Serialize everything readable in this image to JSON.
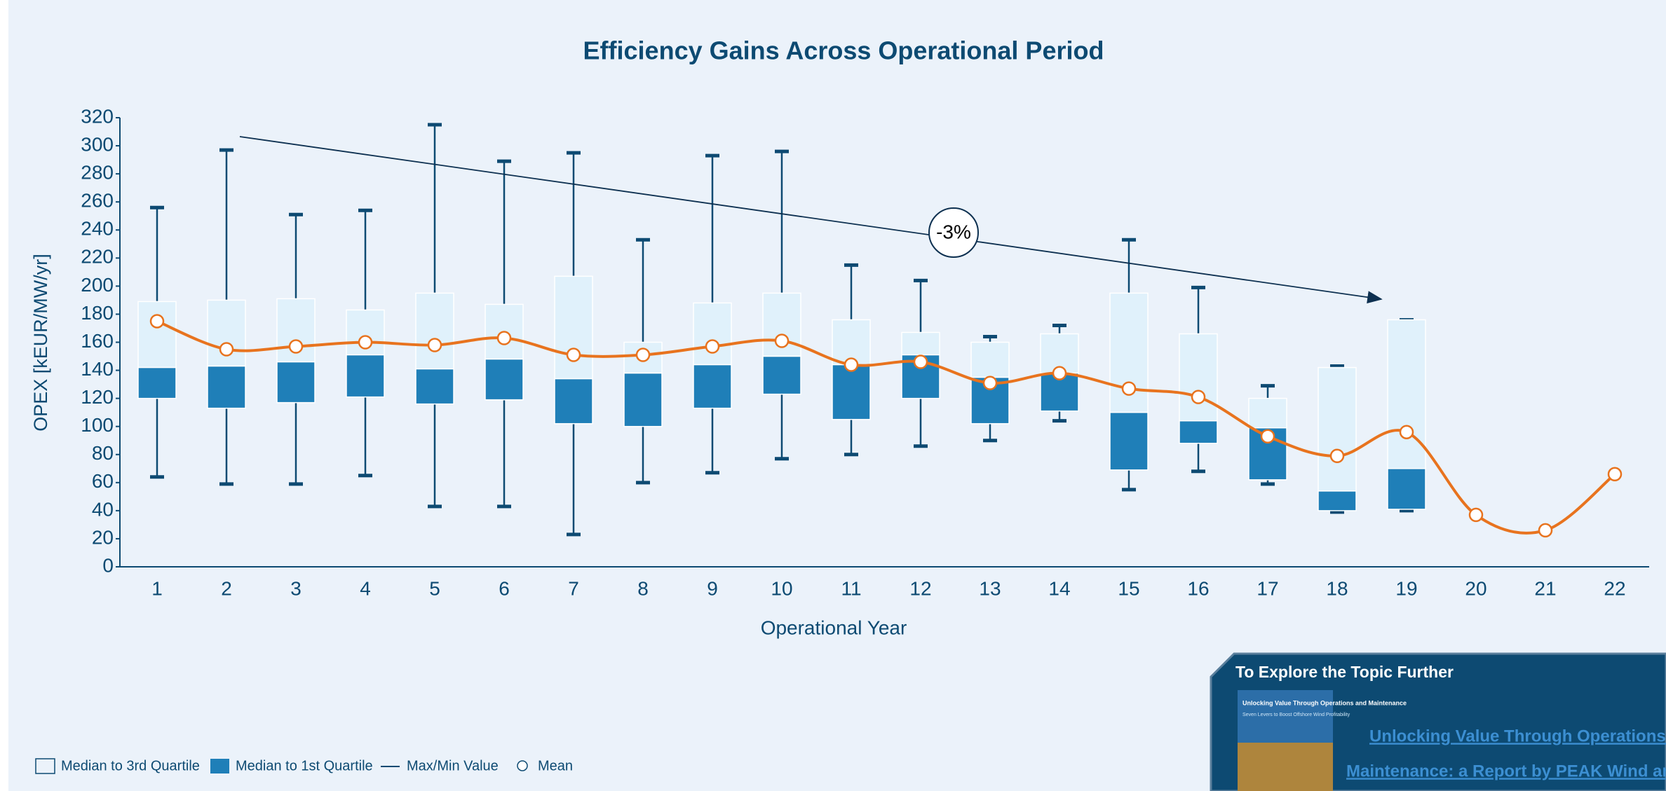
{
  "chart_data": {
    "type": "box",
    "title": "Efficiency Gains Across Operational Period",
    "x_label": "Operational Year",
    "y_label": "OPEX [kEUR/MW/yr]",
    "categories": [
      "1",
      "2",
      "3",
      "4",
      "5",
      "6",
      "7",
      "8",
      "9",
      "10",
      "11",
      "12",
      "13",
      "14",
      "15",
      "16",
      "17",
      "18",
      "19",
      "20",
      "21",
      "22"
    ],
    "max": [
      256,
      297,
      251,
      254,
      315,
      289,
      295,
      233,
      293,
      296,
      215,
      204,
      164,
      172,
      233,
      199,
      129,
      143,
      176,
      null,
      null,
      null
    ],
    "q3": [
      189,
      190,
      191,
      183,
      195,
      187,
      207,
      160,
      188,
      195,
      176,
      167,
      160,
      166,
      195,
      166,
      120,
      142,
      176,
      null,
      null,
      null
    ],
    "median": [
      142,
      143,
      146,
      151,
      141,
      148,
      134,
      138,
      144,
      150,
      144,
      151,
      135,
      138,
      110,
      104,
      99,
      54,
      70,
      null,
      null,
      null
    ],
    "q1": [
      120,
      113,
      117,
      121,
      116,
      119,
      102,
      100,
      113,
      123,
      105,
      120,
      102,
      111,
      69,
      88,
      62,
      40,
      41,
      null,
      null,
      null
    ],
    "min": [
      64,
      59,
      59,
      65,
      43,
      43,
      23,
      60,
      67,
      77,
      80,
      86,
      90,
      104,
      55,
      68,
      59,
      39,
      40,
      null,
      null,
      null
    ],
    "mean": [
      175,
      155,
      157,
      160,
      158,
      163,
      151,
      151,
      157,
      161,
      144,
      146,
      131,
      138,
      127,
      121,
      93,
      79,
      96,
      37,
      26,
      66
    ],
    "colors": {
      "upper_box": "#e0f1fb",
      "lower_box": "#1f7fb8",
      "whisker": "#0d4a72",
      "mean": "#e8731e"
    },
    "legend": [
      "Median to 3rd Quartile",
      "Median to 1st Quartile",
      "Max/Min Value",
      "Mean"
    ],
    "annotation": "-3%",
    "ylim": [
      0,
      320
    ],
    "yticks": [
      0,
      20,
      40,
      60,
      80,
      100,
      120,
      140,
      160,
      180,
      200,
      220,
      240,
      260,
      280,
      300,
      320
    ]
  },
  "panel": {
    "title": "To Explore the Topic Further",
    "cover_title": "Unlocking Value Through Operations and Maintenance",
    "cover_subtitle": "Seven Levers to Boost Offshore Wind Profitability",
    "link_lines": [
      "Unlocking Value Through Operations and",
      "Maintenance: a Report by PEAK Wind and"
    ]
  }
}
